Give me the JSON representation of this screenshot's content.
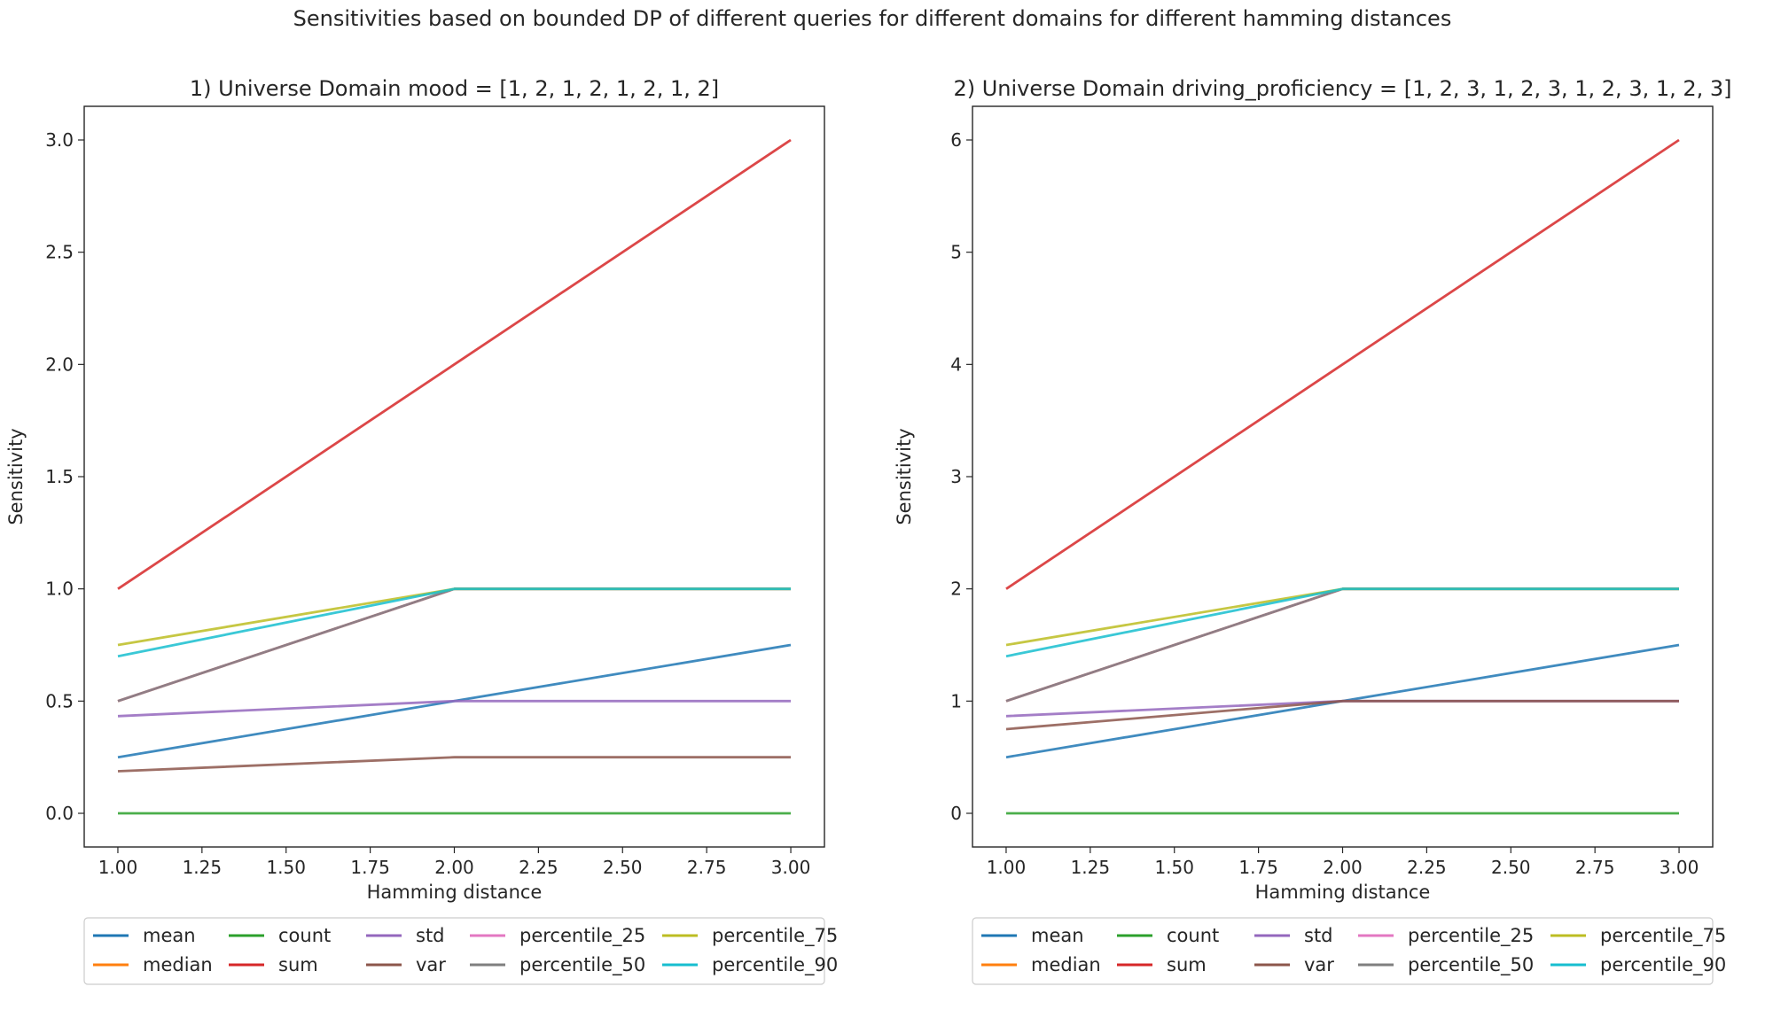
{
  "suptitle": "Sensitivities based on bounded DP of different queries for different domains for different hamming distances",
  "chart_data": [
    {
      "type": "line",
      "title": "1) Universe Domain mood = [1, 2, 1, 2, 1, 2, 1, 2]",
      "xlabel": "Hamming distance",
      "ylabel": "Sensitivity",
      "x": [
        1,
        2,
        3
      ],
      "xlim": [
        0.9,
        3.1
      ],
      "ylim": [
        -0.15,
        3.15
      ],
      "xticks": [
        1.0,
        1.25,
        1.5,
        1.75,
        2.0,
        2.25,
        2.5,
        2.75,
        3.0
      ],
      "xtick_labels": [
        "1.00",
        "1.25",
        "1.50",
        "1.75",
        "2.00",
        "2.25",
        "2.50",
        "2.75",
        "3.00"
      ],
      "yticks": [
        0.0,
        0.5,
        1.0,
        1.5,
        2.0,
        2.5,
        3.0
      ],
      "ytick_labels": [
        "0.0",
        "0.5",
        "1.0",
        "1.5",
        "2.0",
        "2.5",
        "3.0"
      ],
      "legend_position": "below",
      "series": [
        {
          "name": "mean",
          "color": "#1f77b4",
          "values": [
            0.25,
            0.5,
            0.75
          ]
        },
        {
          "name": "median",
          "color": "#ff7f0e",
          "values": [
            0.5,
            1.0,
            1.0
          ]
        },
        {
          "name": "count",
          "color": "#2ca02c",
          "values": [
            0,
            0,
            0
          ]
        },
        {
          "name": "sum",
          "color": "#d62728",
          "values": [
            1,
            2,
            3
          ]
        },
        {
          "name": "std",
          "color": "#9467bd",
          "values": [
            0.433,
            0.5,
            0.5
          ]
        },
        {
          "name": "var",
          "color": "#8c564b",
          "values": [
            0.1875,
            0.25,
            0.25
          ]
        },
        {
          "name": "percentile_25",
          "color": "#e377c2",
          "values": [
            0.5,
            1.0,
            1.0
          ]
        },
        {
          "name": "percentile_50",
          "color": "#7f7f7f",
          "values": [
            0.5,
            1.0,
            1.0
          ]
        },
        {
          "name": "percentile_75",
          "color": "#bcbd22",
          "values": [
            0.75,
            1.0,
            1.0
          ]
        },
        {
          "name": "percentile_90",
          "color": "#17becf",
          "values": [
            0.7,
            1.0,
            1.0
          ]
        }
      ]
    },
    {
      "type": "line",
      "title": "2) Universe Domain driving_proficiency = [1, 2, 3, 1, 2, 3, 1, 2, 3, 1, 2, 3]",
      "xlabel": "Hamming distance",
      "ylabel": "Sensitivity",
      "x": [
        1,
        2,
        3
      ],
      "xlim": [
        0.9,
        3.1
      ],
      "ylim": [
        -0.3,
        6.3
      ],
      "xticks": [
        1.0,
        1.25,
        1.5,
        1.75,
        2.0,
        2.25,
        2.5,
        2.75,
        3.0
      ],
      "xtick_labels": [
        "1.00",
        "1.25",
        "1.50",
        "1.75",
        "2.00",
        "2.25",
        "2.50",
        "2.75",
        "3.00"
      ],
      "yticks": [
        0,
        1,
        2,
        3,
        4,
        5,
        6
      ],
      "ytick_labels": [
        "0",
        "1",
        "2",
        "3",
        "4",
        "5",
        "6"
      ],
      "legend_position": "below",
      "series": [
        {
          "name": "mean",
          "color": "#1f77b4",
          "values": [
            0.5,
            1.0,
            1.5
          ]
        },
        {
          "name": "median",
          "color": "#ff7f0e",
          "values": [
            1,
            2,
            2
          ]
        },
        {
          "name": "count",
          "color": "#2ca02c",
          "values": [
            0,
            0,
            0
          ]
        },
        {
          "name": "sum",
          "color": "#d62728",
          "values": [
            2,
            4,
            6
          ]
        },
        {
          "name": "std",
          "color": "#9467bd",
          "values": [
            0.866,
            1.0,
            1.0
          ]
        },
        {
          "name": "var",
          "color": "#8c564b",
          "values": [
            0.75,
            1.0,
            1.0
          ]
        },
        {
          "name": "percentile_25",
          "color": "#e377c2",
          "values": [
            1,
            2,
            2
          ]
        },
        {
          "name": "percentile_50",
          "color": "#7f7f7f",
          "values": [
            1,
            2,
            2
          ]
        },
        {
          "name": "percentile_75",
          "color": "#bcbd22",
          "values": [
            1.5,
            2,
            2
          ]
        },
        {
          "name": "percentile_90",
          "color": "#17becf",
          "values": [
            1.4,
            2,
            2
          ]
        }
      ]
    }
  ]
}
